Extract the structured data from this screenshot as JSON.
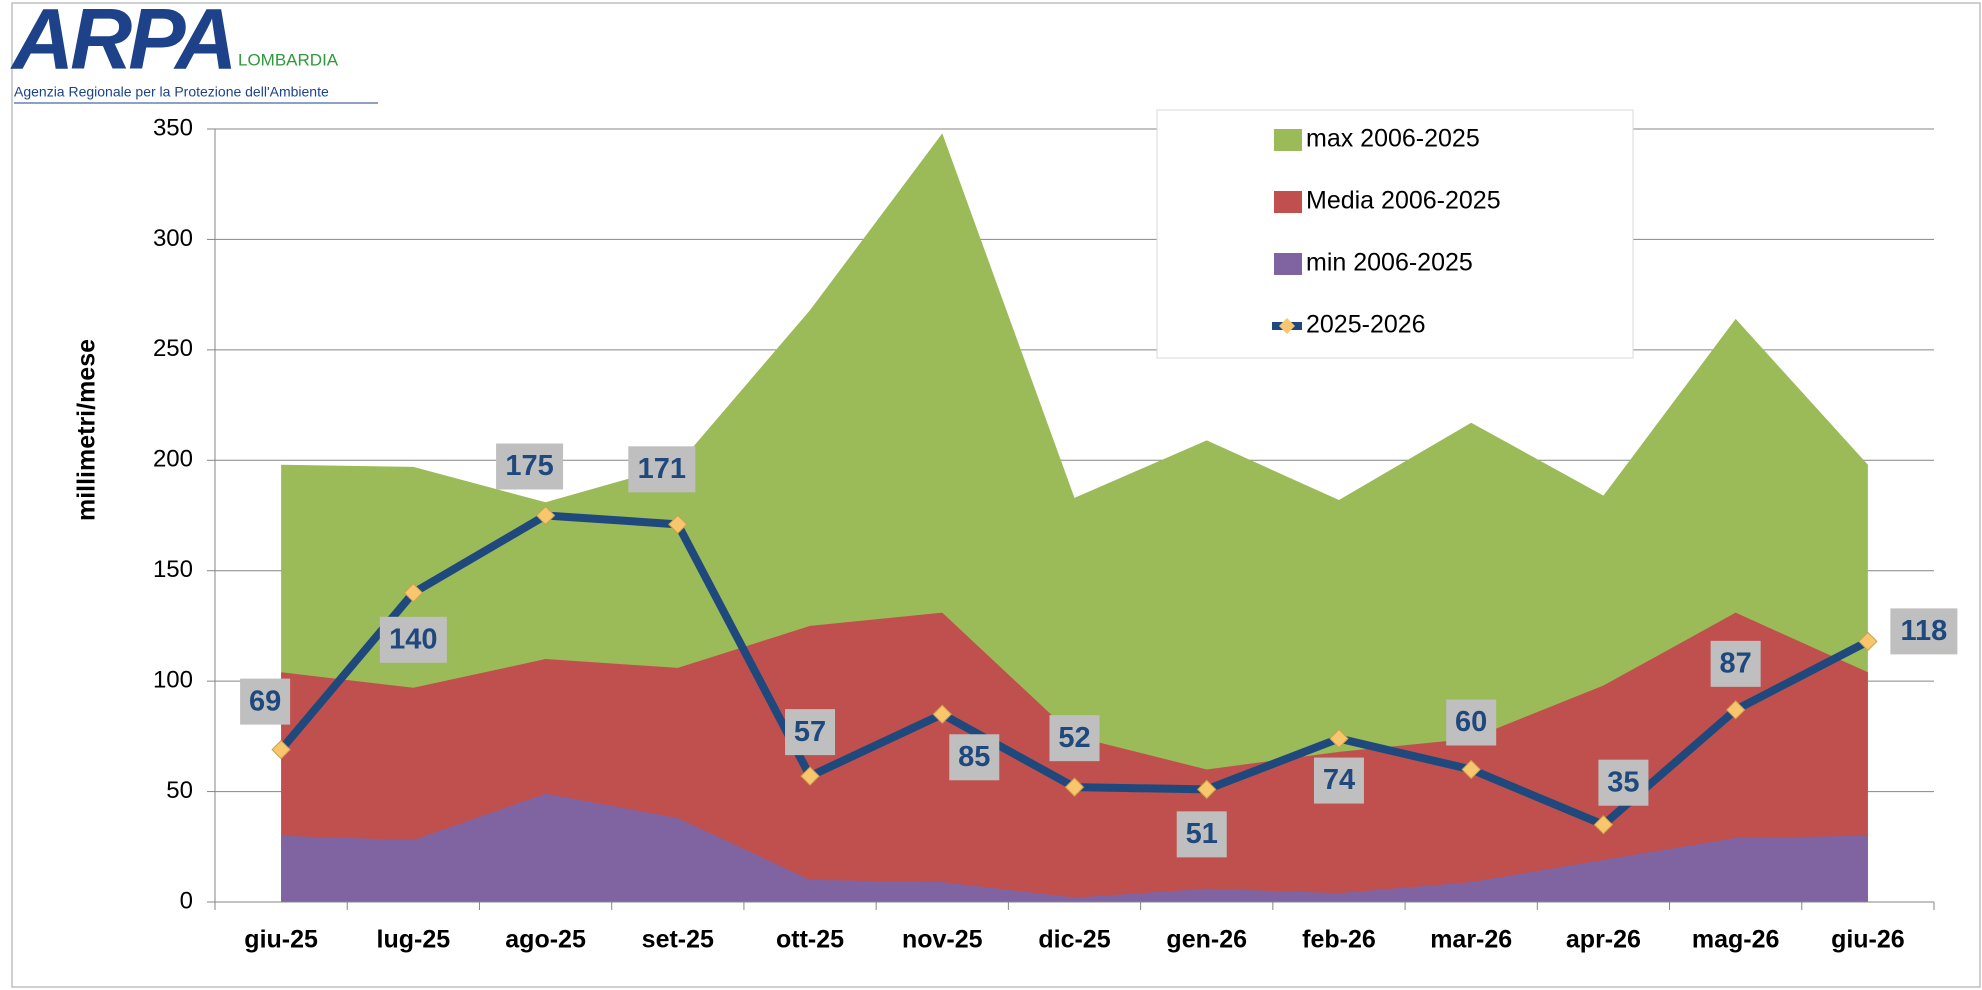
{
  "logo": {
    "name": "ARPA",
    "region": "LOMBARDIA",
    "tagline": "Agenzia Regionale per la Protezione dell'Ambiente"
  },
  "chart_data": {
    "type": "area_line",
    "y_label": "millimetri/mese",
    "categories": [
      "giu-25",
      "lug-25",
      "ago-25",
      "set-25",
      "ott-25",
      "nov-25",
      "dic-25",
      "gen-26",
      "feb-26",
      "mar-26",
      "apr-26",
      "mag-26",
      "giu-26"
    ],
    "series": [
      {
        "name": "max 2006-2025",
        "type": "area",
        "color": "#9bbb59",
        "values": [
          198,
          197,
          181,
          198,
          268,
          348,
          183,
          209,
          182,
          217,
          184,
          264,
          198
        ]
      },
      {
        "name": "Media 2006-2025",
        "type": "area",
        "color": "#c0504d",
        "values": [
          104,
          97,
          110,
          106,
          125,
          131,
          75,
          60,
          68,
          74,
          98,
          131,
          104
        ]
      },
      {
        "name": "min 2006-2025",
        "type": "area",
        "color": "#8064a2",
        "values": [
          30,
          28,
          49,
          38,
          10,
          9,
          2,
          6,
          4,
          9,
          19,
          29,
          30
        ]
      },
      {
        "name": "2025-2026",
        "type": "line",
        "color": "#1f497d",
        "marker_color": "#f9c66e",
        "values": [
          69,
          140,
          175,
          171,
          57,
          85,
          52,
          51,
          74,
          60,
          35,
          87,
          118
        ]
      }
    ],
    "ylim": [
      0,
      350
    ],
    "yticks": [
      0,
      50,
      100,
      150,
      200,
      250,
      300,
      350
    ],
    "grid": true,
    "legend": "top-right"
  }
}
